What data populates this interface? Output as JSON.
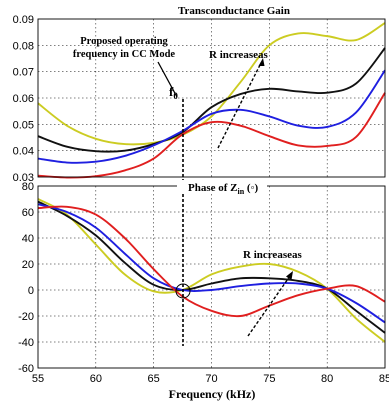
{
  "chart_data": [
    {
      "type": "line",
      "title": "Transconductance Gain",
      "xlim": [
        55,
        85
      ],
      "ylim": [
        0.03,
        0.09
      ],
      "x_ticks": [
        "55",
        "60",
        "65",
        "70",
        "75",
        "80",
        "85"
      ],
      "y_ticks": [
        "0.03",
        "0.04",
        "0.05",
        "0.06",
        "0.07",
        "0.08",
        "0.09"
      ],
      "grid": true,
      "annotations": {
        "operating_point": "Proposed operating frequency in CC Mode",
        "f0_symbol": "f",
        "f0_subscript": "0",
        "trend": "R increaseas"
      },
      "x": [
        55,
        57.5,
        60,
        62.5,
        65,
        67.5,
        70,
        72.5,
        75,
        77.5,
        80,
        82.5,
        85
      ],
      "series": [
        {
          "color": "#cccc22",
          "values": [
            0.058,
            0.0495,
            0.0445,
            0.0425,
            0.043,
            0.046,
            0.053,
            0.066,
            0.08,
            0.0845,
            0.0835,
            0.082,
            0.0885
          ]
        },
        {
          "color": "#111111",
          "values": [
            0.0455,
            0.0415,
            0.0398,
            0.04,
            0.0425,
            0.047,
            0.0565,
            0.0615,
            0.0635,
            0.0625,
            0.062,
            0.0655,
            0.079
          ]
        },
        {
          "color": "#1f1fe0",
          "values": [
            0.037,
            0.0355,
            0.0358,
            0.038,
            0.042,
            0.0475,
            0.054,
            0.0555,
            0.053,
            0.0495,
            0.049,
            0.0545,
            0.0705
          ]
        },
        {
          "color": "#e01f1f",
          "values": [
            0.0305,
            0.0298,
            0.0303,
            0.0325,
            0.037,
            0.0462,
            0.0508,
            0.0495,
            0.0455,
            0.042,
            0.0418,
            0.0452,
            0.062
          ]
        }
      ]
    },
    {
      "type": "line",
      "title_prefix": "Phase of Z",
      "title_subscript": "in",
      "title_suffix": " (◦)",
      "xlabel": "Frequency (kHz)",
      "xlim": [
        55,
        85
      ],
      "ylim": [
        -60,
        80
      ],
      "x_ticks": [
        "55",
        "60",
        "65",
        "70",
        "75",
        "80",
        "85"
      ],
      "y_ticks": [
        "-60",
        "-40",
        "-20",
        "0",
        "20",
        "40",
        "60",
        "80"
      ],
      "grid": true,
      "annotations": {
        "trend": "R increaseas"
      },
      "x": [
        55,
        57.5,
        60,
        62.5,
        65,
        67.5,
        70,
        72.5,
        75,
        77.5,
        80,
        82.5,
        85
      ],
      "series": [
        {
          "color": "#cccc22",
          "values": [
            70,
            58,
            35,
            12,
            -1,
            0,
            12,
            18,
            20,
            14,
            1,
            -22,
            -40
          ]
        },
        {
          "color": "#111111",
          "values": [
            68,
            57,
            42,
            21,
            4,
            0,
            5,
            9,
            9,
            7,
            1,
            -16,
            -33
          ]
        },
        {
          "color": "#1f1fe0",
          "values": [
            66,
            60,
            48,
            28,
            9,
            0,
            0,
            3,
            5,
            5,
            1,
            -10,
            -25
          ]
        },
        {
          "color": "#e01f1f",
          "values": [
            63,
            64,
            58,
            40,
            16,
            -5,
            -16,
            -20,
            -12,
            -4,
            1,
            3,
            -9
          ]
        }
      ]
    }
  ]
}
